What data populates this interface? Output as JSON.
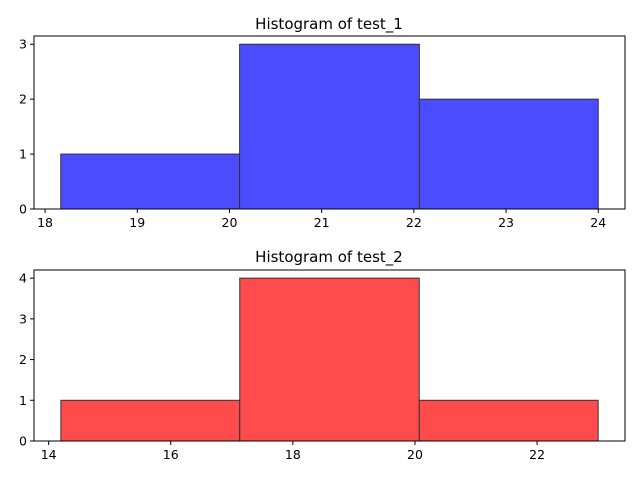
{
  "chart_data": [
    {
      "type": "bar",
      "subtype": "histogram",
      "title": "Histogram of test_1",
      "bins": [
        {
          "x0": 18.17,
          "x1": 20.11,
          "count": 1
        },
        {
          "x0": 20.11,
          "x1": 22.06,
          "count": 3
        },
        {
          "x0": 22.06,
          "x1": 24.0,
          "count": 2
        }
      ],
      "xlim": [
        17.88,
        24.29
      ],
      "ylim": [
        0,
        3.15
      ],
      "xticks": [
        18,
        19,
        20,
        21,
        22,
        23,
        24
      ],
      "yticks": [
        0,
        1,
        2,
        3
      ],
      "color": "#4b4bff",
      "edgecolor": "#333333",
      "xlabel": "",
      "ylabel": "",
      "grid": false
    },
    {
      "type": "bar",
      "subtype": "histogram",
      "title": "Histogram of test_2",
      "bins": [
        {
          "x0": 14.2,
          "x1": 17.13,
          "count": 1
        },
        {
          "x0": 17.13,
          "x1": 20.07,
          "count": 4
        },
        {
          "x0": 20.07,
          "x1": 23.0,
          "count": 1
        }
      ],
      "xlim": [
        13.76,
        23.44
      ],
      "ylim": [
        0,
        4.2
      ],
      "xticks": [
        14,
        16,
        18,
        20,
        22
      ],
      "yticks": [
        0,
        1,
        2,
        3,
        4
      ],
      "color": "#ff4b4b",
      "edgecolor": "#333333",
      "xlabel": "",
      "ylabel": "",
      "grid": false
    }
  ]
}
